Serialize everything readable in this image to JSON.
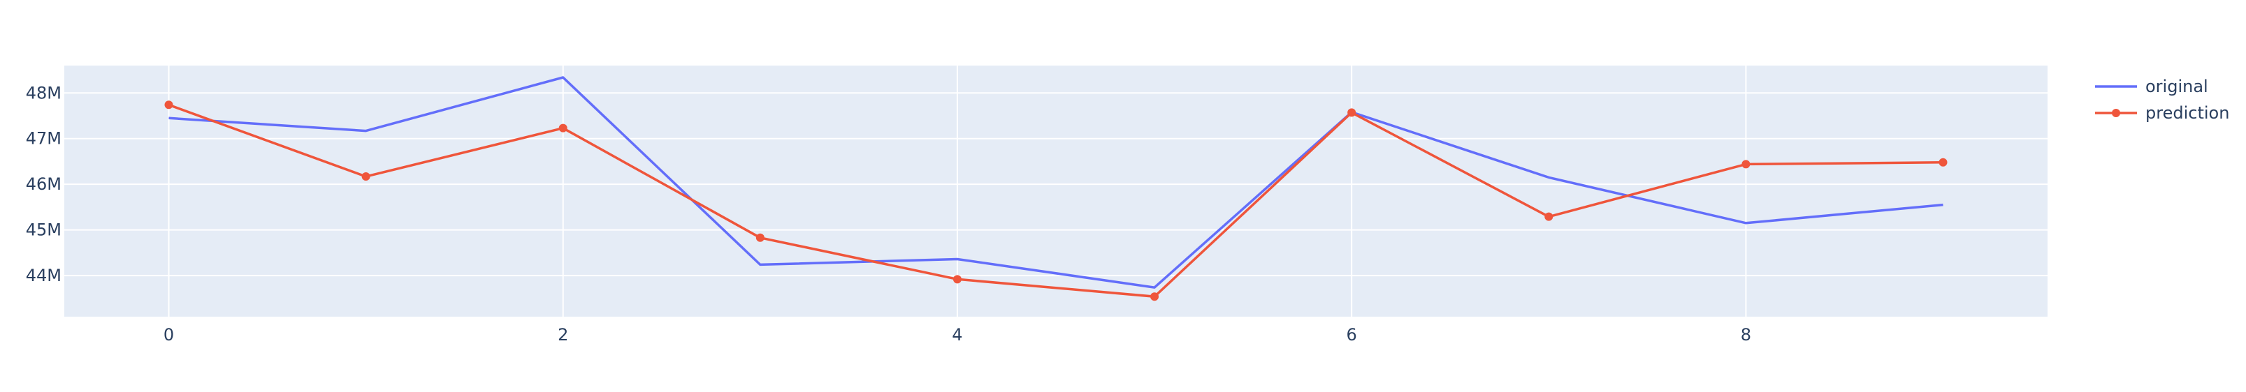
{
  "chart_data": {
    "type": "line",
    "title": "",
    "xlabel": "",
    "ylabel": "",
    "x": [
      0,
      1,
      2,
      3,
      4,
      5,
      6,
      7,
      8,
      9
    ],
    "xlim": [
      -0.53,
      9.53
    ],
    "ylim": [
      43100000,
      48600000
    ],
    "x_ticks": [
      0,
      2,
      4,
      6,
      8
    ],
    "x_tick_labels": [
      "0",
      "2",
      "4",
      "6",
      "8"
    ],
    "y_ticks": [
      44000000,
      45000000,
      46000000,
      47000000,
      48000000
    ],
    "y_tick_labels": [
      "44M",
      "45M",
      "46M",
      "47M",
      "48M"
    ],
    "grid": true,
    "legend_position": "top-right",
    "series": [
      {
        "name": "original",
        "mode": "lines",
        "color": "#636efa",
        "values": [
          47450000,
          47170000,
          48340000,
          44240000,
          44360000,
          43740000,
          47580000,
          46150000,
          45150000,
          45550000
        ]
      },
      {
        "name": "prediction",
        "mode": "lines+markers",
        "color": "#ef553b",
        "values": [
          47740000,
          46170000,
          47230000,
          44830000,
          43920000,
          43540000,
          47570000,
          45290000,
          46440000,
          46480000
        ]
      }
    ],
    "plot_background": "#e5ecf6",
    "grid_color": "#ffffff",
    "text_color": "#2a3f5f"
  }
}
